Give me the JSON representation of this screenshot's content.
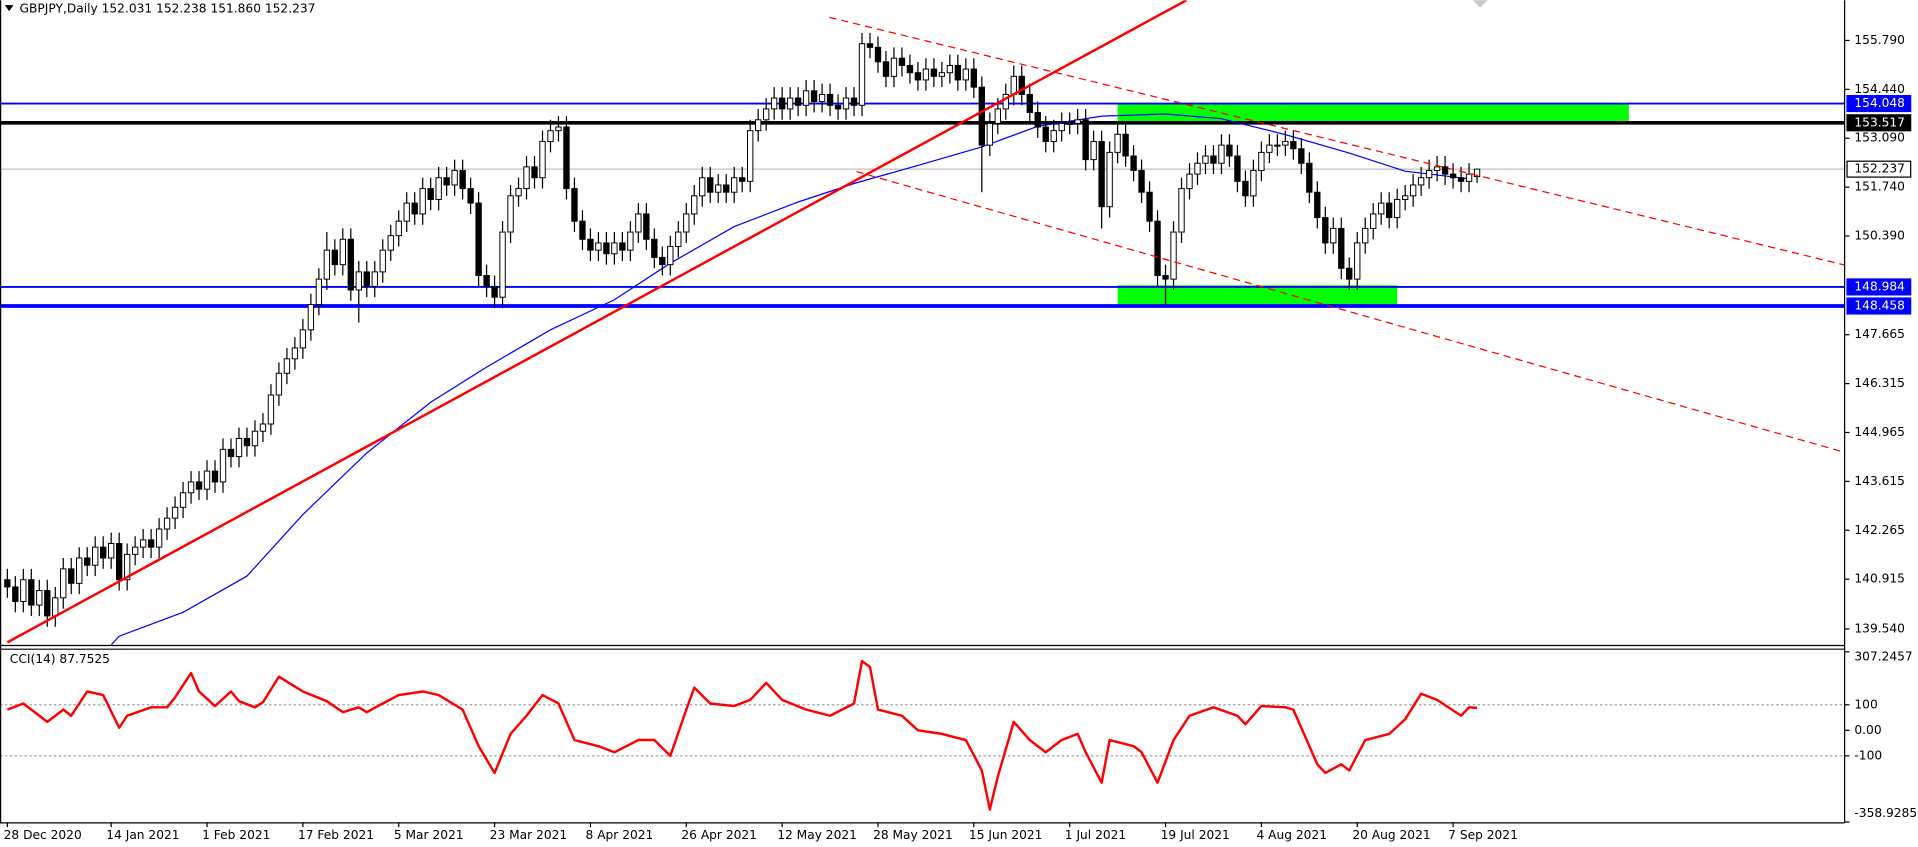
{
  "chart_data": [
    {
      "type": "candlestick",
      "title": "GBPJPY,Daily  152.031 152.238 151.860 152.237",
      "categories": [
        "28 Dec 2020",
        null,
        null,
        null,
        null,
        null,
        null,
        null,
        null,
        null,
        null,
        null,
        null,
        "14 Jan 2021",
        null,
        null,
        null,
        null,
        null,
        null,
        null,
        null,
        null,
        null,
        null,
        "1 Feb 2021",
        null,
        null,
        null,
        null,
        null,
        null,
        null,
        null,
        null,
        null,
        null,
        "17 Feb 2021",
        null,
        null,
        null,
        null,
        null,
        null,
        null,
        null,
        null,
        null,
        null,
        "5 Mar 2021",
        null,
        null,
        null,
        null,
        null,
        null,
        null,
        null,
        null,
        null,
        null,
        "23 Mar 2021",
        null,
        null,
        null,
        null,
        null,
        null,
        null,
        null,
        null,
        null,
        null,
        "8 Apr 2021",
        null,
        null,
        null,
        null,
        null,
        null,
        null,
        null,
        null,
        null,
        null,
        "26 Apr 2021",
        null,
        null,
        null,
        null,
        null,
        null,
        null,
        null,
        null,
        null,
        null,
        "12 May 2021",
        null,
        null,
        null,
        null,
        null,
        null,
        null,
        null,
        null,
        null,
        null,
        "28 May 2021",
        null,
        null,
        null,
        null,
        null,
        null,
        null,
        null,
        null,
        null,
        null,
        "15 Jun 2021",
        null,
        null,
        null,
        null,
        null,
        null,
        null,
        null,
        null,
        null,
        null,
        "1 Jul 2021",
        null,
        null,
        null,
        null,
        null,
        null,
        null,
        null,
        null,
        null,
        null,
        "19 Jul 2021",
        null,
        null,
        null,
        null,
        null,
        null,
        null,
        null,
        null,
        null,
        null,
        "4 Aug 2021",
        null,
        null,
        null,
        null,
        null,
        null,
        null,
        null,
        null,
        null,
        null,
        "20 Aug 2021",
        null,
        null,
        null,
        null,
        null,
        null,
        null,
        null,
        null,
        null,
        null,
        "7 Sep 2021",
        null,
        null,
        null
      ],
      "open": [
        140.9,
        140.7,
        140.3,
        140.9,
        140.2,
        140.6,
        139.9,
        140.4,
        141.2,
        140.8,
        141.5,
        141.3,
        141.8,
        141.5,
        141.9,
        140.9,
        141.6,
        141.8,
        142.0,
        141.8,
        142.3,
        142.6,
        142.9,
        143.3,
        143.6,
        143.4,
        143.9,
        143.6,
        144.5,
        144.3,
        144.8,
        144.6,
        145.0,
        145.2,
        146.0,
        146.6,
        147.0,
        147.3,
        147.8,
        148.5,
        149.2,
        150.0,
        149.6,
        150.3,
        148.9,
        149.4,
        149.0,
        149.4,
        150.0,
        150.4,
        150.8,
        151.3,
        151.0,
        151.7,
        151.4,
        152.0,
        151.8,
        152.2,
        151.7,
        151.3,
        149.3,
        149.0,
        148.7,
        150.5,
        151.5,
        151.7,
        152.3,
        152.0,
        153.0,
        153.3,
        153.4,
        151.7,
        150.8,
        150.3,
        150.0,
        150.2,
        149.9,
        150.2,
        150.0,
        150.5,
        151.0,
        150.3,
        149.8,
        149.6,
        150.1,
        150.5,
        151.0,
        151.5,
        152.0,
        151.6,
        151.8,
        151.6,
        152.0,
        151.9,
        153.3,
        153.6,
        153.9,
        154.2,
        153.9,
        154.2,
        154.0,
        154.4,
        154.1,
        154.3,
        154.0,
        153.9,
        154.2,
        154.0,
        155.7,
        155.6,
        155.2,
        154.8,
        155.3,
        155.1,
        154.9,
        154.7,
        155.0,
        154.8,
        154.9,
        155.1,
        154.7,
        155.0,
        154.5,
        152.9,
        153.5,
        153.9,
        154.3,
        154.8,
        154.3,
        153.8,
        153.4,
        153.0,
        153.3,
        153.5,
        153.5,
        153.6,
        152.5,
        153.0,
        151.2,
        152.7,
        153.2,
        152.6,
        152.2,
        151.6,
        150.8,
        149.3,
        149.2,
        150.5,
        151.7,
        152.1,
        152.4,
        152.6,
        152.4,
        152.9,
        152.6,
        151.9,
        151.5,
        152.2,
        152.7,
        152.9,
        152.9,
        153.0,
        152.8,
        152.4,
        151.6,
        150.9,
        150.2,
        150.6,
        149.5,
        149.2,
        150.2,
        150.6,
        151.0,
        151.3,
        150.9,
        151.4,
        151.5,
        151.8,
        152.0,
        152.2,
        152.3,
        152.1,
        152.0,
        151.9,
        152.031
      ],
      "high": [
        141.2,
        141.0,
        141.2,
        141.2,
        140.9,
        140.9,
        140.7,
        141.5,
        141.5,
        141.8,
        141.8,
        142.1,
        142.1,
        142.2,
        142.2,
        141.9,
        142.1,
        142.3,
        142.3,
        142.6,
        142.9,
        143.2,
        143.6,
        143.9,
        143.9,
        144.2,
        144.2,
        144.8,
        144.8,
        145.1,
        145.1,
        145.3,
        145.5,
        146.3,
        146.9,
        147.3,
        147.6,
        148.1,
        148.8,
        149.5,
        150.5,
        150.3,
        150.6,
        150.6,
        149.7,
        149.7,
        149.7,
        150.3,
        150.7,
        151.1,
        151.6,
        151.6,
        152.0,
        152.0,
        152.3,
        152.3,
        152.5,
        152.5,
        152.0,
        151.6,
        149.6,
        149.3,
        150.8,
        151.8,
        152.0,
        152.6,
        152.6,
        153.3,
        153.6,
        153.7,
        153.7,
        152.0,
        151.1,
        150.6,
        150.5,
        150.5,
        150.5,
        150.5,
        150.8,
        151.3,
        151.3,
        150.6,
        150.1,
        150.4,
        150.8,
        151.3,
        151.8,
        152.3,
        152.3,
        152.1,
        152.1,
        152.3,
        152.3,
        153.6,
        153.9,
        154.2,
        154.5,
        154.5,
        154.5,
        154.5,
        154.7,
        154.7,
        154.6,
        154.6,
        154.3,
        154.5,
        154.5,
        156.0,
        156.0,
        155.9,
        155.5,
        155.6,
        155.6,
        155.4,
        155.2,
        155.3,
        155.3,
        155.2,
        155.4,
        155.4,
        155.3,
        155.3,
        154.8,
        153.8,
        154.2,
        154.6,
        155.1,
        155.1,
        154.6,
        154.1,
        153.7,
        153.6,
        153.8,
        153.8,
        153.9,
        153.9,
        153.3,
        153.3,
        153.0,
        153.5,
        153.5,
        152.9,
        152.5,
        151.9,
        151.1,
        149.6,
        150.8,
        152.0,
        152.4,
        152.7,
        152.9,
        152.9,
        153.2,
        153.2,
        152.9,
        152.2,
        152.5,
        153.0,
        153.2,
        153.2,
        153.3,
        153.3,
        153.1,
        152.7,
        151.9,
        151.2,
        150.9,
        150.9,
        149.8,
        150.5,
        150.9,
        151.3,
        151.6,
        151.6,
        151.7,
        151.8,
        152.1,
        152.3,
        152.5,
        152.6,
        152.6,
        152.4,
        152.3,
        152.4,
        152.238
      ],
      "low": [
        140.4,
        140.0,
        140.0,
        139.9,
        139.9,
        139.6,
        139.6,
        140.1,
        140.5,
        140.5,
        141.0,
        141.0,
        141.2,
        141.2,
        140.6,
        140.6,
        141.3,
        141.5,
        141.5,
        141.5,
        142.0,
        142.3,
        142.6,
        143.0,
        143.1,
        143.1,
        143.3,
        143.3,
        144.0,
        144.0,
        144.3,
        144.3,
        144.7,
        144.9,
        145.7,
        146.3,
        146.7,
        147.0,
        147.5,
        148.2,
        148.9,
        149.3,
        149.3,
        148.6,
        148.0,
        148.7,
        148.7,
        149.1,
        149.7,
        150.1,
        150.5,
        150.7,
        150.7,
        151.1,
        151.1,
        151.5,
        151.5,
        151.4,
        151.0,
        149.0,
        148.7,
        148.4,
        148.4,
        150.2,
        151.2,
        151.4,
        151.7,
        151.7,
        152.7,
        153.0,
        151.4,
        150.5,
        150.0,
        149.7,
        149.7,
        149.6,
        149.6,
        149.7,
        149.7,
        150.2,
        150.0,
        149.5,
        149.3,
        149.3,
        149.8,
        150.2,
        150.7,
        151.2,
        151.3,
        151.3,
        151.3,
        151.3,
        151.6,
        151.6,
        153.0,
        153.3,
        153.6,
        153.6,
        153.6,
        153.7,
        153.7,
        153.8,
        153.8,
        153.7,
        153.6,
        153.6,
        153.7,
        153.7,
        155.3,
        154.9,
        154.5,
        154.5,
        154.8,
        154.6,
        154.4,
        154.4,
        154.5,
        154.5,
        154.6,
        154.4,
        154.4,
        154.2,
        151.6,
        152.6,
        153.2,
        153.6,
        154.0,
        154.0,
        153.5,
        153.1,
        152.7,
        152.7,
        153.0,
        153.2,
        153.2,
        152.2,
        152.2,
        150.6,
        150.9,
        152.4,
        152.3,
        151.9,
        151.3,
        150.5,
        149.0,
        148.5,
        148.9,
        150.2,
        151.4,
        151.8,
        152.1,
        152.1,
        152.1,
        152.3,
        151.6,
        151.2,
        151.2,
        151.9,
        152.4,
        152.6,
        152.6,
        152.5,
        152.1,
        151.3,
        150.6,
        149.9,
        149.9,
        149.2,
        148.9,
        148.9,
        149.9,
        150.3,
        150.7,
        150.6,
        150.6,
        151.1,
        151.2,
        151.5,
        151.7,
        151.9,
        151.8,
        151.7,
        151.6,
        151.6,
        151.86
      ],
      "close": [
        140.7,
        140.3,
        140.9,
        140.2,
        140.6,
        139.9,
        140.4,
        141.2,
        140.8,
        141.5,
        141.3,
        141.8,
        141.5,
        141.9,
        140.9,
        141.6,
        141.8,
        142.0,
        141.8,
        142.3,
        142.6,
        142.9,
        143.3,
        143.6,
        143.4,
        143.9,
        143.6,
        144.5,
        144.3,
        144.8,
        144.6,
        145.0,
        145.2,
        146.0,
        146.6,
        147.0,
        147.3,
        147.8,
        148.5,
        149.2,
        150.0,
        149.6,
        150.3,
        148.9,
        149.4,
        149.0,
        149.4,
        150.0,
        150.4,
        150.8,
        151.3,
        151.0,
        151.7,
        151.4,
        152.0,
        151.8,
        152.2,
        151.7,
        151.3,
        149.3,
        149.0,
        148.7,
        150.5,
        151.5,
        151.7,
        152.3,
        152.0,
        153.0,
        153.3,
        153.4,
        151.7,
        150.8,
        150.3,
        150.0,
        150.2,
        149.9,
        150.2,
        150.0,
        150.5,
        151.0,
        150.3,
        149.8,
        149.6,
        150.1,
        150.5,
        151.0,
        151.5,
        152.0,
        151.6,
        151.8,
        151.6,
        152.0,
        151.9,
        153.3,
        153.6,
        153.9,
        154.2,
        153.9,
        154.2,
        154.0,
        154.4,
        154.1,
        154.3,
        154.0,
        153.9,
        154.2,
        154.0,
        155.7,
        155.6,
        155.2,
        154.8,
        155.3,
        155.1,
        154.9,
        154.7,
        155.0,
        154.8,
        154.9,
        155.1,
        154.7,
        155.0,
        154.5,
        152.9,
        153.5,
        153.9,
        154.3,
        154.8,
        154.3,
        153.8,
        153.4,
        153.0,
        153.3,
        153.5,
        153.5,
        153.6,
        152.5,
        153.0,
        151.2,
        152.7,
        153.2,
        152.6,
        152.2,
        151.6,
        150.8,
        149.3,
        149.2,
        150.5,
        151.7,
        152.1,
        152.4,
        152.6,
        152.4,
        152.9,
        152.6,
        151.9,
        151.5,
        152.2,
        152.7,
        152.9,
        152.9,
        153.0,
        152.8,
        152.4,
        151.6,
        150.9,
        150.2,
        150.6,
        149.5,
        149.2,
        150.2,
        150.6,
        151.0,
        151.3,
        150.9,
        151.4,
        151.5,
        151.8,
        152.0,
        152.2,
        152.3,
        152.1,
        152.0,
        151.9,
        152.1,
        152.237
      ],
      "ylim": [
        139.1,
        156.9
      ],
      "yticks": [
        {
          "value": 155.79,
          "label": "155.790"
        },
        {
          "value": 154.44,
          "label": "154.440"
        },
        {
          "value": 153.09,
          "label": "153.090"
        },
        {
          "value": 151.74,
          "label": "151.740"
        },
        {
          "value": 150.39,
          "label": "150.390"
        },
        147.665,
        146.315,
        144.965,
        143.615,
        142.265,
        140.915,
        {
          "value": 139.54,
          "label": "139.540"
        }
      ],
      "levels": [
        {
          "value": 154.048,
          "color": "#0000ff",
          "thick": false
        },
        {
          "value": 153.517,
          "color": "#000000",
          "thick": true
        },
        {
          "value": 148.984,
          "color": "#0000ff",
          "thick": false
        },
        {
          "value": 148.458,
          "color": "#0000ff",
          "thick": true
        }
      ],
      "last_price": {
        "value": 152.237,
        "color": "#c0c0c0"
      },
      "zones": [
        {
          "x": [
            139,
            203
          ],
          "y": [
            154.03,
            153.56
          ],
          "color": "#00ff00"
        },
        {
          "x": [
            139,
            174
          ],
          "y": [
            149.03,
            148.46
          ],
          "color": "#00ff00"
        }
      ],
      "trendlines": [
        {
          "x": [
            0,
            147.6
          ],
          "y": [
            139.17,
            156.9
          ],
          "color": "#ff0000",
          "dashed": false
        },
        {
          "x": [
            102.9,
            231.1
          ],
          "y": [
            156.43,
            149.53
          ],
          "color": "#ff0000",
          "dashed": true
        },
        {
          "x": [
            106.3,
            230.3
          ],
          "y": [
            152.17,
            144.4
          ],
          "color": "#ff0000",
          "dashed": true
        }
      ],
      "ma": {
        "x": [
          13,
          14,
          22,
          30,
          37,
          45,
          53,
          60,
          68,
          76,
          83,
          91,
          99,
          106,
          114,
          122,
          129,
          137,
          145,
          152,
          160,
          168,
          175,
          183
        ],
        "values": [
          139.1,
          139.34,
          140.0,
          141.0,
          142.7,
          144.4,
          145.8,
          146.77,
          147.8,
          148.63,
          149.64,
          150.65,
          151.33,
          151.84,
          152.34,
          152.85,
          153.42,
          153.7,
          153.76,
          153.63,
          153.19,
          152.68,
          152.18,
          151.97
        ],
        "color": "#0000ff"
      },
      "bull_color": "#ffffff",
      "bear_color": "#000000"
    },
    {
      "type": "line",
      "title": "CCI(14) 87.7525",
      "x": [
        0,
        2,
        5,
        7,
        8,
        10,
        12,
        14,
        15,
        18,
        20,
        21,
        23,
        24,
        26,
        28,
        29,
        31,
        32,
        34,
        37,
        40,
        42,
        44,
        45,
        47,
        49,
        52,
        54,
        57,
        59,
        61,
        63,
        65,
        67,
        69,
        71,
        74,
        76,
        79,
        81,
        83,
        85,
        86,
        88,
        91,
        93,
        95,
        97,
        100,
        103,
        106,
        107,
        108,
        109,
        112,
        114,
        117,
        120,
        122,
        123,
        124,
        126,
        128,
        130,
        132,
        134,
        135,
        137,
        138,
        141,
        142,
        144,
        146,
        148,
        151,
        154,
        155,
        157,
        160,
        161,
        164,
        165,
        167,
        168,
        170,
        173,
        175,
        177,
        179,
        182,
        183,
        184
      ],
      "values": [
        81,
        105,
        33,
        81,
        57,
        152,
        138,
        10,
        57,
        90,
        90,
        129,
        224,
        152,
        95,
        152,
        114,
        90,
        110,
        210,
        152,
        114,
        71,
        90,
        71,
        105,
        138,
        152,
        138,
        81,
        -62,
        -167,
        -14,
        57,
        138,
        105,
        -38,
        -62,
        -86,
        -38,
        -38,
        -100,
        81,
        167,
        105,
        95,
        119,
        186,
        119,
        81,
        57,
        105,
        271,
        248,
        81,
        57,
        0,
        -14,
        -38,
        -157,
        -310,
        -181,
        33,
        -38,
        -86,
        -38,
        -14,
        -86,
        -205,
        -38,
        -62,
        -86,
        -205,
        -38,
        57,
        90,
        57,
        24,
        95,
        90,
        81,
        -133,
        -167,
        -133,
        -157,
        -38,
        -14,
        43,
        143,
        119,
        57,
        90,
        87.7525
      ],
      "color": "#ff0000",
      "ylim": [
        -360,
        320
      ],
      "yticks": [
        307.2457,
        100,
        {
          "value": 0,
          "label": "0.00"
        },
        -100,
        -358.9285
      ],
      "levels": [
        100,
        -100
      ]
    }
  ]
}
